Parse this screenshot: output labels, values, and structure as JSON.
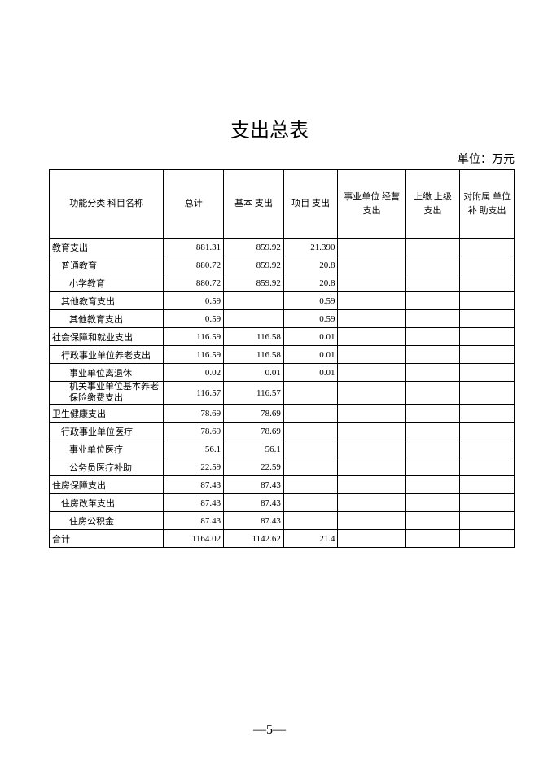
{
  "title": "支出总表",
  "unit_label": "单位：万元",
  "page_number": "—5—",
  "table": {
    "columns": [
      "功能分类\n科目名称",
      "总计",
      "基本\n支出",
      "项目\n支出",
      "事业单位\n经营支出",
      "上缴\n上级\n支出",
      "对附属\n单位补\n助支出"
    ],
    "rows": [
      {
        "indent": 0,
        "name": "教育支出",
        "v": [
          "881.31",
          "859.92",
          "21.390",
          "",
          "",
          ""
        ]
      },
      {
        "indent": 1,
        "name": "普通教育",
        "v": [
          "880.72",
          "859.92",
          "20.8",
          "",
          "",
          ""
        ]
      },
      {
        "indent": 2,
        "name": "小学教育",
        "v": [
          "880.72",
          "859.92",
          "20.8",
          "",
          "",
          ""
        ]
      },
      {
        "indent": 1,
        "name": "其他教育支出",
        "v": [
          "0.59",
          "",
          "0.59",
          "",
          "",
          ""
        ]
      },
      {
        "indent": 2,
        "name": "其他教育支出",
        "v": [
          "0.59",
          "",
          "0.59",
          "",
          "",
          ""
        ]
      },
      {
        "indent": 0,
        "name": "社会保障和就业支出",
        "v": [
          "116.59",
          "116.58",
          "0.01",
          "",
          "",
          ""
        ]
      },
      {
        "indent": 1,
        "name": "行政事业单位养老支出",
        "v": [
          "116.59",
          "116.58",
          "0.01",
          "",
          "",
          ""
        ]
      },
      {
        "indent": 2,
        "name": "事业单位离退休",
        "v": [
          "0.02",
          "0.01",
          "0.01",
          "",
          "",
          ""
        ]
      },
      {
        "indent": 2,
        "name": "机关事业单位基本养老保险缴费支出",
        "multiline": true,
        "v": [
          "116.57",
          "116.57",
          "",
          "",
          "",
          ""
        ]
      },
      {
        "indent": 0,
        "name": "卫生健康支出",
        "v": [
          "78.69",
          "78.69",
          "",
          "",
          "",
          ""
        ]
      },
      {
        "indent": 1,
        "name": "行政事业单位医疗",
        "v": [
          "78.69",
          "78.69",
          "",
          "",
          "",
          ""
        ]
      },
      {
        "indent": 2,
        "name": "事业单位医疗",
        "v": [
          "56.1",
          "56.1",
          "",
          "",
          "",
          ""
        ]
      },
      {
        "indent": 2,
        "name": "公务员医疗补助",
        "v": [
          "22.59",
          "22.59",
          "",
          "",
          "",
          ""
        ]
      },
      {
        "indent": 0,
        "name": "住房保障支出",
        "v": [
          "87.43",
          "87.43",
          "",
          "",
          "",
          ""
        ]
      },
      {
        "indent": 1,
        "name": "住房改革支出",
        "v": [
          "87.43",
          "87.43",
          "",
          "",
          "",
          ""
        ]
      },
      {
        "indent": 2,
        "name": "住房公积金",
        "v": [
          "87.43",
          "87.43",
          "",
          "",
          "",
          ""
        ]
      },
      {
        "indent": 0,
        "name": "合计",
        "v": [
          "1164.02",
          "1142.62",
          "21.4",
          "",
          "",
          ""
        ]
      }
    ]
  }
}
